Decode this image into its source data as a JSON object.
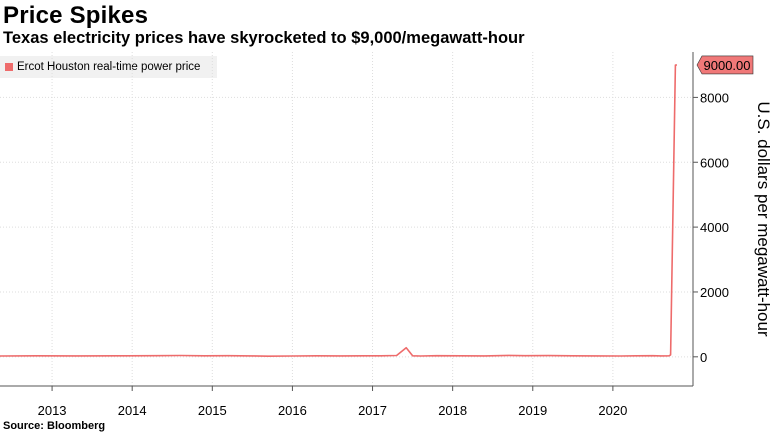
{
  "chart_data": {
    "type": "line",
    "title": "Price Spikes",
    "subtitle": "Texas electricity prices have skyrocketed to $9,000/megawatt-hour",
    "source": "Source: Bloomberg",
    "ylabel": "U.S. dollars per megawatt-hour",
    "xlabel": "",
    "ylim": [
      -900,
      9400
    ],
    "xlim": [
      2012.35,
      2021.0
    ],
    "yticks": [
      "0",
      "2000",
      "4000",
      "6000",
      "8000"
    ],
    "ytick_values": [
      0,
      2000,
      4000,
      6000,
      8000
    ],
    "xticks": [
      "2013",
      "2014",
      "2015",
      "2016",
      "2017",
      "2018",
      "2019",
      "2020"
    ],
    "xtick_values": [
      2013,
      2014,
      2015,
      2016,
      2017,
      2018,
      2019,
      2020
    ],
    "grid": true,
    "legend_position": "top-left",
    "annotation": "9000.00",
    "colors": {
      "line": "#ee6b6b",
      "annotation_fill": "#f07878",
      "grid": "#dddddd"
    },
    "series": [
      {
        "name": "Ercot Houston real-time power price",
        "x": [
          2012.35,
          2012.8,
          2013.3,
          2013.8,
          2014.3,
          2014.6,
          2014.9,
          2015.2,
          2015.5,
          2015.7,
          2016.0,
          2016.3,
          2016.6,
          2016.9,
          2017.1,
          2017.3,
          2017.42,
          2017.5,
          2017.6,
          2017.8,
          2018.1,
          2018.4,
          2018.7,
          2018.9,
          2019.2,
          2019.5,
          2019.8,
          2020.1,
          2020.3,
          2020.5,
          2020.6,
          2020.7,
          2020.72,
          2020.78,
          2020.8
        ],
        "y": [
          25,
          30,
          28,
          32,
          35,
          40,
          30,
          33,
          28,
          20,
          25,
          30,
          28,
          30,
          32,
          40,
          280,
          30,
          25,
          35,
          30,
          28,
          45,
          35,
          38,
          30,
          28,
          25,
          30,
          35,
          28,
          30,
          60,
          9000,
          9000
        ]
      }
    ]
  }
}
